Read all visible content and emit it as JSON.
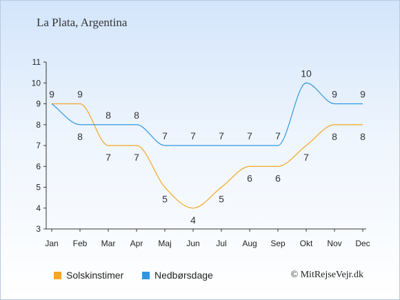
{
  "title": "La Plata, Argentina",
  "credit": "© MitRejseVejr.dk",
  "colors": {
    "sun": "#f5a623",
    "rain": "#2e96e0",
    "axis": "#333333"
  },
  "chart_data": {
    "type": "line",
    "categories": [
      "Jan",
      "Feb",
      "Mar",
      "Apr",
      "Maj",
      "Jun",
      "Jul",
      "Aug",
      "Sep",
      "Okt",
      "Nov",
      "Dec"
    ],
    "ylim": [
      3,
      11
    ],
    "yticks": [
      3,
      4,
      5,
      6,
      7,
      8,
      9,
      10,
      11
    ],
    "grid": false,
    "legend_position": "bottom-left",
    "series": [
      {
        "name": "Solskinstimer",
        "color": "#f5a623",
        "values": [
          9,
          9,
          7,
          7,
          5,
          4,
          5,
          6,
          6,
          7,
          8,
          8
        ]
      },
      {
        "name": "Nedbørsdage",
        "color": "#2e96e0",
        "values": [
          9,
          8,
          8,
          8,
          7,
          7,
          7,
          7,
          7,
          10,
          9,
          9
        ]
      }
    ]
  }
}
